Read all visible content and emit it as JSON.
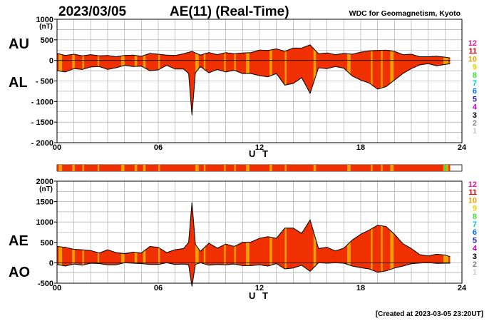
{
  "header": {
    "date": "2023/03/05",
    "title": "AE(11) (Real-Time)",
    "source": "WDC for Geomagnetism, Kyoto",
    "created": "[Created at 2023-03-05 23:20UT]"
  },
  "legend": {
    "levels": [
      {
        "label": "12",
        "color": "#e0189a"
      },
      {
        "label": "11",
        "color": "#e80000"
      },
      {
        "label": "10",
        "color": "#f0a000"
      },
      {
        "label": "9",
        "color": "#d8d800"
      },
      {
        "label": "8",
        "color": "#40e040"
      },
      {
        "label": "7",
        "color": "#00c8c8"
      },
      {
        "label": "6",
        "color": "#0070ff"
      },
      {
        "label": "5",
        "color": "#2020b0"
      },
      {
        "label": "4",
        "color": "#c000c0"
      },
      {
        "label": "3",
        "color": "#000000"
      },
      {
        "label": "2",
        "color": "#808080"
      },
      {
        "label": "1",
        "color": "#c8c8c8"
      }
    ]
  },
  "colors": {
    "fill_main": "#f03000",
    "fill_alt": "#f0a000",
    "grid": "#a0a0a0",
    "line": "#000000"
  },
  "chart_data": [
    {
      "type": "area",
      "panel": "top",
      "left_labels": [
        "AU",
        "AL"
      ],
      "unit": "(nT)",
      "xlabel": "U T",
      "ylim": [
        -2000,
        1000
      ],
      "yticks": [
        1000,
        500,
        0,
        -500,
        -1000,
        -1500,
        -2000
      ],
      "ytick_labels": [
        "1000",
        "500",
        "0",
        "- 500",
        "- 1000",
        "- 1500",
        "- 2000"
      ],
      "xlim": [
        0,
        24
      ],
      "xticks": [
        0,
        6,
        12,
        18,
        24
      ],
      "xtick_labels": [
        "00",
        "06",
        "12",
        "18",
        "24"
      ],
      "series": [
        {
          "name": "AU",
          "x": [
            0,
            0.5,
            1,
            1.5,
            2,
            2.5,
            3,
            3.5,
            4,
            4.5,
            5,
            5.5,
            6,
            6.5,
            7,
            7.5,
            8,
            8.5,
            9,
            9.5,
            10,
            10.5,
            11,
            11.5,
            12,
            12.5,
            13,
            13.5,
            14,
            14.5,
            15,
            15.5,
            16,
            16.5,
            17,
            17.5,
            18,
            18.5,
            19,
            19.5,
            20,
            20.5,
            21,
            21.5,
            22,
            22.5,
            23,
            23.3
          ],
          "y": [
            170,
            120,
            150,
            110,
            140,
            110,
            120,
            90,
            120,
            130,
            100,
            170,
            150,
            130,
            120,
            160,
            220,
            130,
            190,
            140,
            190,
            160,
            180,
            190,
            250,
            240,
            280,
            220,
            300,
            300,
            380,
            160,
            180,
            140,
            170,
            150,
            200,
            230,
            240,
            250,
            220,
            140,
            150,
            90,
            90,
            100,
            80,
            60
          ]
        },
        {
          "name": "AL",
          "x": [
            0,
            0.5,
            1,
            1.5,
            2,
            2.5,
            3,
            3.5,
            4,
            4.5,
            5,
            5.5,
            6,
            6.5,
            7,
            7.5,
            7.8,
            8.0,
            8.2,
            8.5,
            9,
            9.5,
            10,
            10.5,
            11,
            11.5,
            12,
            12.5,
            13,
            13.5,
            14,
            14.5,
            15,
            15.5,
            16,
            16.5,
            17,
            17.5,
            18,
            18.5,
            19,
            19.5,
            20,
            20.5,
            21,
            21.5,
            22,
            22.5,
            23,
            23.3
          ],
          "y": [
            -250,
            -280,
            -200,
            -220,
            -160,
            -150,
            -220,
            -180,
            -120,
            -150,
            -140,
            -250,
            -230,
            -120,
            -210,
            -210,
            -320,
            -1330,
            -300,
            -150,
            -300,
            -220,
            -280,
            -240,
            -320,
            -320,
            -370,
            -400,
            -320,
            -600,
            -560,
            -420,
            -800,
            -180,
            -200,
            -150,
            -190,
            -380,
            -480,
            -550,
            -700,
            -640,
            -480,
            -320,
            -200,
            -110,
            -80,
            -130,
            -100,
            -80
          ]
        }
      ],
      "alt_color_intervals": [
        [
          0.1,
          0.3
        ],
        [
          0.9,
          1.05
        ],
        [
          1.5,
          1.6
        ],
        [
          2.4,
          2.5
        ],
        [
          3.8,
          4.0
        ],
        [
          4.6,
          4.75
        ],
        [
          5.1,
          5.25
        ],
        [
          6.0,
          6.1
        ],
        [
          8.2,
          8.4
        ],
        [
          8.7,
          8.8
        ],
        [
          9.9,
          10.0
        ],
        [
          10.5,
          10.6
        ],
        [
          11.2,
          11.4
        ],
        [
          12.6,
          12.75
        ],
        [
          13.5,
          13.6
        ],
        [
          15.2,
          15.35
        ],
        [
          17.2,
          17.4
        ],
        [
          18.6,
          18.7
        ],
        [
          19.2,
          19.3
        ],
        [
          19.75,
          19.95
        ],
        [
          22.9,
          23.2
        ]
      ]
    },
    {
      "type": "area",
      "panel": "bottom",
      "left_labels": [
        "AE",
        "AO"
      ],
      "unit": "(nT)",
      "xlabel": "U T",
      "ylim": [
        -500,
        2000
      ],
      "yticks": [
        2000,
        1500,
        1000,
        500,
        0,
        -500
      ],
      "ytick_labels": [
        "2000",
        "1500",
        "1000",
        "500",
        "0",
        "-500"
      ],
      "xlim": [
        0,
        24
      ],
      "xticks": [
        0,
        6,
        12,
        18,
        24
      ],
      "xtick_labels": [
        "00",
        "06",
        "12",
        "18",
        "24"
      ],
      "series": [
        {
          "name": "AE",
          "x": [
            0,
            0.5,
            1,
            1.5,
            2,
            2.5,
            3,
            3.5,
            4,
            4.5,
            5,
            5.5,
            6,
            6.5,
            7,
            7.5,
            7.8,
            8.0,
            8.2,
            8.5,
            9,
            9.5,
            10,
            10.5,
            11,
            11.5,
            12,
            12.5,
            13,
            13.5,
            14,
            14.5,
            15,
            15.5,
            16,
            16.5,
            17,
            17.5,
            18,
            18.5,
            19,
            19.5,
            20,
            20.5,
            21,
            21.5,
            22,
            22.5,
            23,
            23.3
          ],
          "y": [
            400,
            380,
            330,
            320,
            300,
            240,
            320,
            250,
            220,
            260,
            240,
            400,
            380,
            250,
            320,
            350,
            500,
            1480,
            450,
            280,
            480,
            360,
            460,
            400,
            500,
            510,
            600,
            640,
            600,
            850,
            850,
            720,
            1050,
            350,
            380,
            290,
            360,
            560,
            700,
            800,
            920,
            890,
            700,
            470,
            350,
            200,
            170,
            210,
            190,
            150
          ]
        },
        {
          "name": "AO",
          "x": [
            0,
            0.5,
            1,
            1.5,
            2,
            2.5,
            3,
            3.5,
            4,
            4.5,
            5,
            5.5,
            6,
            6.5,
            7,
            7.5,
            7.8,
            8.0,
            8.2,
            8.5,
            9,
            9.5,
            10,
            10.5,
            11,
            11.5,
            12,
            12.5,
            13,
            13.5,
            14,
            14.5,
            15,
            15.5,
            16,
            16.5,
            17,
            17.5,
            18,
            18.5,
            19,
            19.5,
            20,
            20.5,
            21,
            21.5,
            22,
            22.5,
            23,
            23.3
          ],
          "y": [
            -40,
            -80,
            -30,
            -60,
            -10,
            -20,
            -50,
            -50,
            0,
            -10,
            -20,
            -40,
            -40,
            0,
            -40,
            -30,
            -50,
            -580,
            -40,
            0,
            -60,
            -40,
            -50,
            -30,
            -70,
            -70,
            -50,
            -80,
            -20,
            -150,
            -130,
            -60,
            -210,
            0,
            -10,
            0,
            -10,
            -80,
            -120,
            -150,
            -230,
            -200,
            -130,
            -80,
            -25,
            -5,
            5,
            -15,
            -10,
            -10
          ]
        }
      ],
      "alt_color_intervals": [
        [
          0.1,
          0.3
        ],
        [
          0.9,
          1.05
        ],
        [
          1.5,
          1.6
        ],
        [
          2.4,
          2.5
        ],
        [
          3.8,
          4.0
        ],
        [
          4.6,
          4.75
        ],
        [
          5.1,
          5.25
        ],
        [
          6.0,
          6.1
        ],
        [
          8.2,
          8.4
        ],
        [
          8.7,
          8.8
        ],
        [
          9.9,
          10.0
        ],
        [
          10.5,
          10.6
        ],
        [
          11.2,
          11.4
        ],
        [
          12.6,
          12.75
        ],
        [
          13.5,
          13.6
        ],
        [
          15.2,
          15.35
        ],
        [
          17.2,
          17.4
        ],
        [
          18.6,
          18.7
        ],
        [
          19.2,
          19.3
        ],
        [
          19.75,
          19.95
        ],
        [
          22.9,
          23.2
        ]
      ]
    }
  ]
}
